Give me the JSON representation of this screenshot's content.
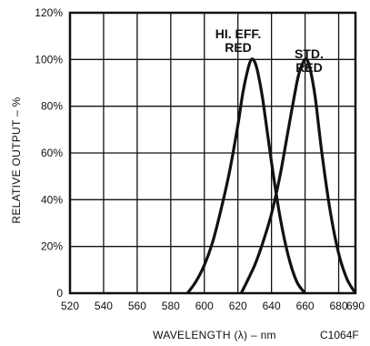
{
  "chart_data": {
    "type": "line",
    "title": "",
    "xlabel": "WAVELENGTH (λ) – nm",
    "ylabel": "RELATIVE OUTPUT – %",
    "xlim": [
      520,
      690
    ],
    "ylim": [
      0,
      120
    ],
    "x_ticks": [
      "520",
      "540",
      "560",
      "580",
      "600",
      "620",
      "640",
      "660",
      "680",
      "690"
    ],
    "x_tick_values": [
      520,
      540,
      560,
      580,
      600,
      620,
      640,
      660,
      680,
      690
    ],
    "y_ticks": [
      "0",
      "20%",
      "40%",
      "60%",
      "80%",
      "100%",
      "120%"
    ],
    "y_tick_values": [
      0,
      20,
      40,
      60,
      80,
      100,
      120
    ],
    "grid": true,
    "series": [
      {
        "name_lines": [
          "HI. EFF.",
          "RED"
        ],
        "x": [
          590,
          595,
          600,
          605,
          610,
          615,
          620,
          623,
          626,
          628,
          630,
          632,
          635,
          640,
          645,
          650,
          655,
          660
        ],
        "y": [
          0,
          5,
          12,
          22,
          36,
          52,
          72,
          86,
          96,
          100,
          99,
          94,
          82,
          56,
          33,
          16,
          5,
          0
        ]
      },
      {
        "name_lines": [
          "STD.",
          "RED"
        ],
        "x": [
          622,
          630,
          635,
          640,
          645,
          650,
          653,
          656,
          659,
          661,
          663,
          666,
          670,
          675,
          680,
          685,
          690
        ],
        "y": [
          0,
          12,
          22,
          34,
          50,
          70,
          82,
          93,
          99,
          100,
          96,
          84,
          60,
          35,
          17,
          6,
          0
        ]
      }
    ],
    "annotations": [
      "C1064F"
    ]
  }
}
